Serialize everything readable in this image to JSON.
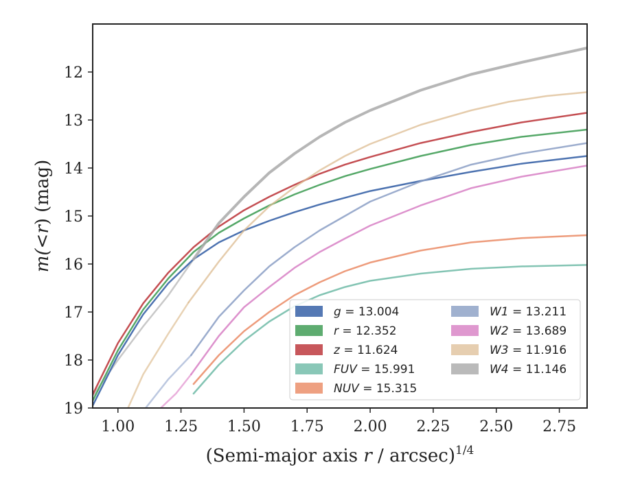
{
  "chart_data": {
    "type": "line",
    "xlabel_main": "(Semi-major axis ",
    "xlabel_var": "r",
    "xlabel_tail": " / arcsec)",
    "xlabel_sup": "1/4",
    "ylabel_prefix": "m(",
    "ylabel_var": "<r",
    "ylabel_suffix": ") (mag)",
    "xlim": [
      0.9,
      2.86
    ],
    "ylim": [
      19.0,
      11.0
    ],
    "y_inverted": true,
    "grid": false,
    "legend_position": "lower-right",
    "xticks": [
      1.0,
      1.25,
      1.5,
      1.75,
      2.0,
      2.25,
      2.5,
      2.75
    ],
    "xtick_labels": [
      "1.00",
      "1.25",
      "1.50",
      "1.75",
      "2.00",
      "2.25",
      "2.50",
      "2.75"
    ],
    "yticks": [
      12,
      13,
      14,
      15,
      16,
      17,
      18,
      19
    ],
    "ytick_labels": [
      "12",
      "13",
      "14",
      "15",
      "16",
      "17",
      "18",
      "19"
    ],
    "series": [
      {
        "name": "g",
        "value_label": "13.004",
        "color": "#4c72b0",
        "opacity": 1.0,
        "points": [
          [
            0.9,
            18.95
          ],
          [
            1.0,
            17.9
          ],
          [
            1.1,
            17.05
          ],
          [
            1.2,
            16.4
          ],
          [
            1.3,
            15.9
          ],
          [
            1.4,
            15.55
          ],
          [
            1.5,
            15.3
          ],
          [
            1.6,
            15.1
          ],
          [
            1.7,
            14.92
          ],
          [
            1.8,
            14.76
          ],
          [
            1.9,
            14.62
          ],
          [
            2.0,
            14.48
          ],
          [
            2.2,
            14.27
          ],
          [
            2.4,
            14.08
          ],
          [
            2.6,
            13.91
          ],
          [
            2.86,
            13.75
          ]
        ]
      },
      {
        "name": "r",
        "value_label": "12.352",
        "color": "#55a868",
        "opacity": 1.0,
        "points": [
          [
            0.9,
            18.85
          ],
          [
            1.0,
            17.8
          ],
          [
            1.1,
            16.95
          ],
          [
            1.2,
            16.3
          ],
          [
            1.3,
            15.75
          ],
          [
            1.4,
            15.35
          ],
          [
            1.5,
            15.05
          ],
          [
            1.6,
            14.78
          ],
          [
            1.7,
            14.55
          ],
          [
            1.8,
            14.35
          ],
          [
            1.9,
            14.17
          ],
          [
            2.0,
            14.02
          ],
          [
            2.2,
            13.75
          ],
          [
            2.4,
            13.52
          ],
          [
            2.6,
            13.35
          ],
          [
            2.86,
            13.2
          ]
        ]
      },
      {
        "name": "z",
        "value_label": "11.624",
        "color": "#c44e52",
        "opacity": 1.0,
        "points": [
          [
            0.9,
            18.72
          ],
          [
            1.0,
            17.65
          ],
          [
            1.1,
            16.82
          ],
          [
            1.2,
            16.18
          ],
          [
            1.3,
            15.65
          ],
          [
            1.4,
            15.22
          ],
          [
            1.5,
            14.88
          ],
          [
            1.6,
            14.6
          ],
          [
            1.7,
            14.35
          ],
          [
            1.8,
            14.12
          ],
          [
            1.9,
            13.93
          ],
          [
            2.0,
            13.77
          ],
          [
            2.2,
            13.48
          ],
          [
            2.4,
            13.25
          ],
          [
            2.6,
            13.05
          ],
          [
            2.86,
            12.85
          ]
        ]
      },
      {
        "name": "FUV",
        "value_label": "15.991",
        "color": "#64b5a0",
        "opacity": 0.8,
        "points": [
          [
            1.3,
            18.7
          ],
          [
            1.4,
            18.1
          ],
          [
            1.5,
            17.6
          ],
          [
            1.6,
            17.2
          ],
          [
            1.7,
            16.88
          ],
          [
            1.8,
            16.65
          ],
          [
            1.9,
            16.48
          ],
          [
            2.0,
            16.35
          ],
          [
            2.2,
            16.2
          ],
          [
            2.4,
            16.1
          ],
          [
            2.6,
            16.05
          ],
          [
            2.86,
            16.02
          ]
        ]
      },
      {
        "name": "NUV",
        "value_label": "15.315",
        "color": "#e8825a",
        "opacity": 0.8,
        "points": [
          [
            1.3,
            18.5
          ],
          [
            1.4,
            17.9
          ],
          [
            1.5,
            17.4
          ],
          [
            1.6,
            17.0
          ],
          [
            1.7,
            16.65
          ],
          [
            1.8,
            16.38
          ],
          [
            1.9,
            16.15
          ],
          [
            2.0,
            15.97
          ],
          [
            2.2,
            15.72
          ],
          [
            2.4,
            15.55
          ],
          [
            2.6,
            15.46
          ],
          [
            2.86,
            15.4
          ]
        ]
      },
      {
        "name": "W1",
        "value_label": "13.211",
        "color": "#8a9ec4",
        "opacity": 0.85,
        "points": [
          [
            1.29,
            17.9
          ],
          [
            1.4,
            17.1
          ],
          [
            1.5,
            16.55
          ],
          [
            1.6,
            16.05
          ],
          [
            1.7,
            15.65
          ],
          [
            1.8,
            15.3
          ],
          [
            1.9,
            15.0
          ],
          [
            2.0,
            14.7
          ],
          [
            2.2,
            14.28
          ],
          [
            2.4,
            13.93
          ],
          [
            2.6,
            13.7
          ],
          [
            2.86,
            13.48
          ]
        ]
      },
      {
        "name": "W2",
        "value_label": "13.689",
        "color": "#d77fc4",
        "opacity": 0.85,
        "points": [
          [
            1.29,
            18.3
          ],
          [
            1.4,
            17.5
          ],
          [
            1.5,
            16.9
          ],
          [
            1.6,
            16.48
          ],
          [
            1.7,
            16.08
          ],
          [
            1.8,
            15.75
          ],
          [
            1.9,
            15.47
          ],
          [
            2.0,
            15.2
          ],
          [
            2.2,
            14.78
          ],
          [
            2.4,
            14.42
          ],
          [
            2.6,
            14.18
          ],
          [
            2.86,
            13.95
          ]
        ]
      },
      {
        "name": "W3",
        "value_label": "11.916",
        "color": "#dcbb90",
        "opacity": 0.75,
        "points": [
          [
            1.28,
            16.8
          ],
          [
            1.4,
            15.95
          ],
          [
            1.5,
            15.3
          ],
          [
            1.6,
            14.8
          ],
          [
            1.7,
            14.4
          ],
          [
            1.8,
            14.05
          ],
          [
            1.9,
            13.75
          ],
          [
            2.0,
            13.5
          ],
          [
            2.2,
            13.1
          ],
          [
            2.4,
            12.8
          ],
          [
            2.55,
            12.62
          ],
          [
            2.7,
            12.5
          ],
          [
            2.86,
            12.42
          ]
        ]
      },
      {
        "name": "W4",
        "value_label": "11.146",
        "color": "#a9a9a9",
        "opacity": 0.85,
        "points": [
          [
            1.3,
            15.9
          ],
          [
            1.4,
            15.15
          ],
          [
            1.5,
            14.6
          ],
          [
            1.6,
            14.1
          ],
          [
            1.7,
            13.7
          ],
          [
            1.8,
            13.35
          ],
          [
            1.9,
            13.05
          ],
          [
            2.0,
            12.8
          ],
          [
            2.2,
            12.38
          ],
          [
            2.4,
            12.05
          ],
          [
            2.6,
            11.8
          ],
          [
            2.86,
            11.5
          ]
        ]
      }
    ],
    "faint_extensions": [
      {
        "of": "W4",
        "color": "#c8c8c8",
        "points": [
          [
            0.9,
            18.75
          ],
          [
            1.0,
            18.0
          ],
          [
            1.1,
            17.3
          ],
          [
            1.2,
            16.65
          ],
          [
            1.3,
            15.9
          ]
        ]
      },
      {
        "of": "W3",
        "color": "#e8d2b4",
        "points": [
          [
            1.04,
            19.0
          ],
          [
            1.1,
            18.3
          ],
          [
            1.2,
            17.45
          ],
          [
            1.28,
            16.8
          ]
        ]
      },
      {
        "of": "W1",
        "color": "#bcc8e0",
        "points": [
          [
            1.11,
            19.0
          ],
          [
            1.2,
            18.4
          ],
          [
            1.29,
            17.9
          ]
        ]
      },
      {
        "of": "W2",
        "color": "#eab0dc",
        "points": [
          [
            1.17,
            19.0
          ],
          [
            1.23,
            18.7
          ],
          [
            1.29,
            18.3
          ]
        ]
      }
    ]
  }
}
